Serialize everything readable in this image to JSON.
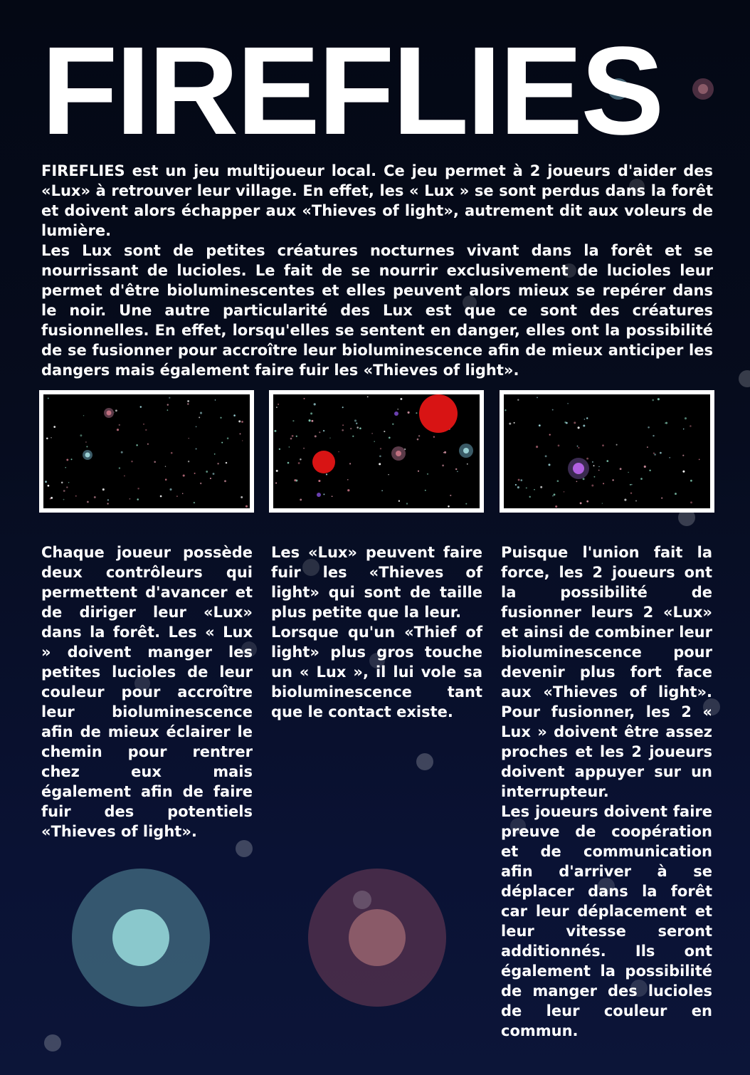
{
  "title": "FIREFLIES",
  "intro": {
    "p1": "FIREFLIES est un jeu multijoueur local. Ce jeu permet à 2 joueurs d'aider des «Lux» à retrouver leur village. En effet, les « Lux » se sont perdus dans la forêt et doivent alors échapper aux «Thieves of light», autrement dit aux voleurs de lumière.",
    "p2": "Les Lux sont de petites créatures nocturnes vivant dans la forêt et se nourrissant de lucioles. Le fait de se nourrir exclusivement de lucioles leur permet d'être bioluminescentes et elles peuvent alors mieux se repérer dans le noir. Une autre particularité des Lux est que ce sont des créatures fusionnelles. En effet, lorsqu'elles se sentent en danger, elles ont la possibilité de se fusionner pour accroître leur bioluminescence afin de mieux anticiper les dangers mais également faire fuir les «Thieves of light»."
  },
  "screenshots": [
    {
      "name": "gameplay-screenshot-1"
    },
    {
      "name": "gameplay-screenshot-2"
    },
    {
      "name": "gameplay-screenshot-3"
    }
  ],
  "columns": {
    "col1": {
      "p1": "Chaque joueur possède deux contrôleurs qui permettent d'avancer et de diriger leur «Lux» dans la forêt. Les « Lux » doivent manger les petites lucioles de leur couleur pour accroître leur bioluminescence afin de mieux éclairer le chemin pour rentrer chez eux mais également afin de faire fuir des potentiels «Thieves of light»."
    },
    "col2": {
      "p1": "Les «Lux» peuvent faire fuir les «Thieves of light» qui sont de taille plus petite que la leur.",
      "p2": "Lorsque qu'un «Thief of light» plus gros touche un « Lux », il lui vole sa bioluminescence tant que le contact existe."
    },
    "col3": {
      "p1": "Puisque l'union fait la force, les 2 joueurs ont la possibilité de fusionner leurs 2 «Lux» et ainsi de combiner leur bioluminescence pour devenir plus fort face aux «Thieves of light». Pour fusionner, les 2 « Lux » doivent être assez proches et les 2 joueurs doivent appuyer sur un interrupteur.",
      "p2": "Les joueurs doivent faire preuve de coopération et de communication afin d'arriver à se déplacer dans la forêt car leur déplacement et leur vitesse seront additionnés. Ils ont également la possibilité de manger des lucioles de leur couleur en commun."
    }
  },
  "colors": {
    "lux_blue": "#8ac8cc",
    "lux_pink": "#8a5a68",
    "thief_red": "#d81414",
    "fusion_purple": "#b060e0",
    "background": "#050a1c"
  }
}
